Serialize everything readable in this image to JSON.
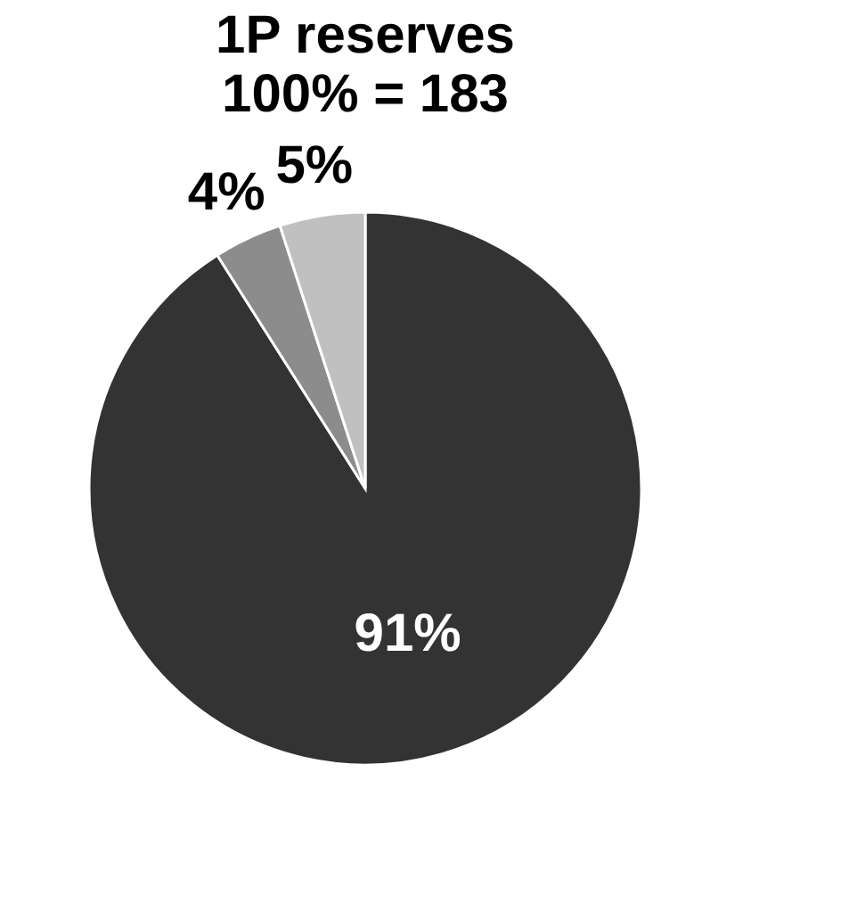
{
  "chart_data": {
    "type": "pie",
    "title": "1P reserves",
    "subtitle": "100% = 183",
    "categories": [
      null,
      null,
      null
    ],
    "values": [
      91,
      4,
      5
    ],
    "colors": [
      "#333333",
      "#8c8c8c",
      "#c0c0c0"
    ],
    "value_labels": [
      "91%",
      "4%",
      "5%"
    ],
    "legend": false
  }
}
